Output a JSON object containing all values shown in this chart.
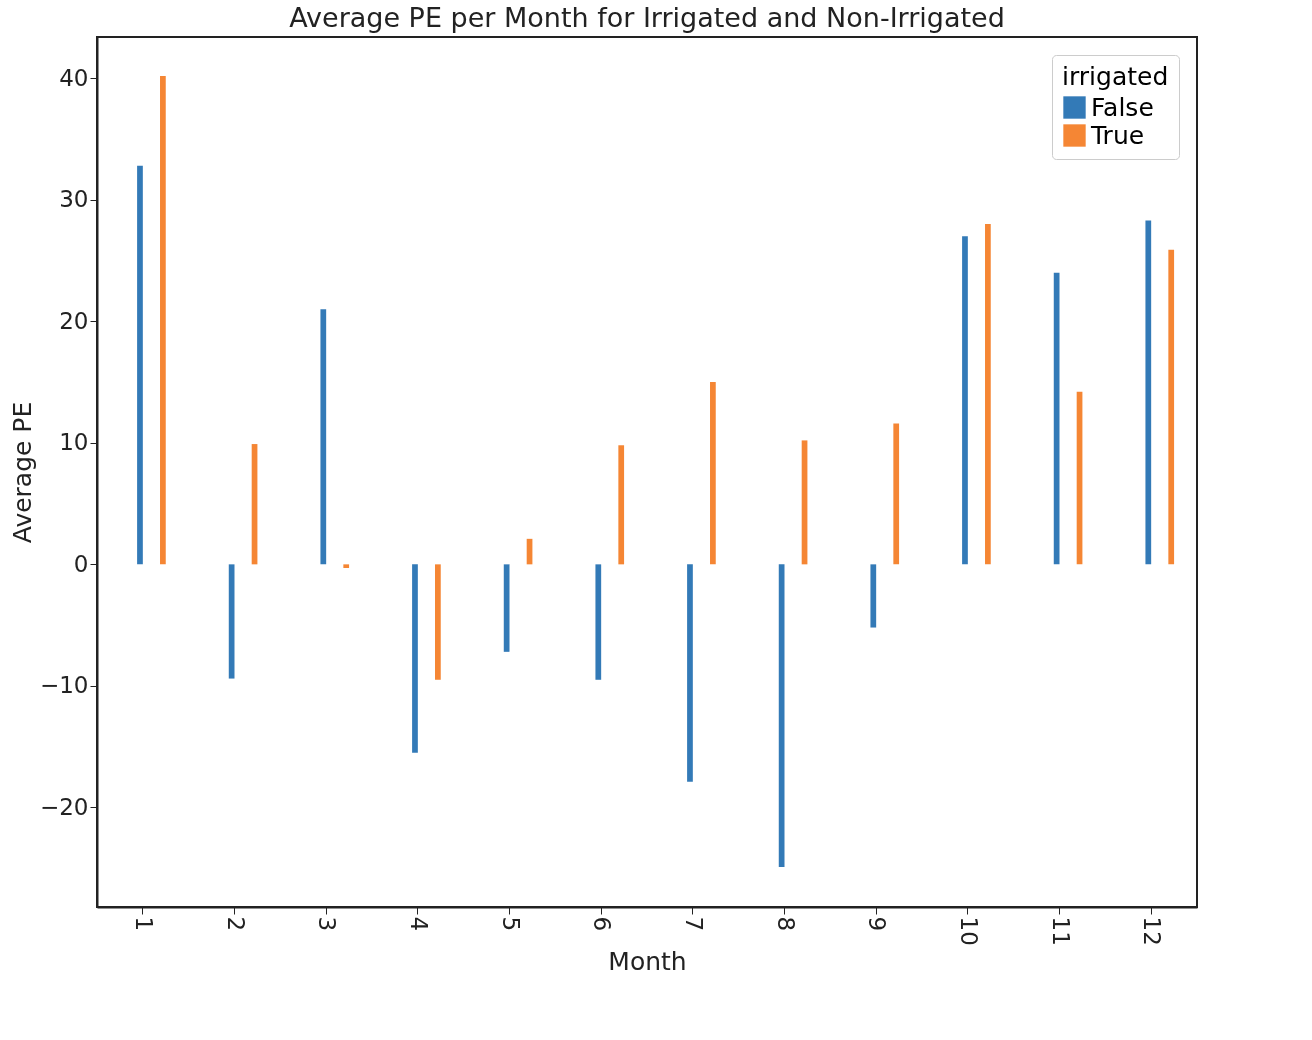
{
  "chart_data": {
    "type": "bar",
    "title": "Average PE per Month for Irrigated and Non-Irrigated",
    "xlabel": "Month",
    "ylabel": "Average PE",
    "legend_title": "irrigated",
    "categories": [
      "1",
      "2",
      "3",
      "4",
      "5",
      "6",
      "7",
      "8",
      "9",
      "10",
      "11",
      "12"
    ],
    "series": [
      {
        "name": "False",
        "color": "#337ab7",
        "values": [
          32.8,
          -9.4,
          21.0,
          -15.5,
          -7.2,
          -9.5,
          -17.9,
          -24.9,
          -5.2,
          27.0,
          24.0,
          28.3
        ]
      },
      {
        "name": "True",
        "color": "#f58634",
        "values": [
          40.2,
          9.9,
          -0.3,
          -9.5,
          2.1,
          9.8,
          15.0,
          10.2,
          11.6,
          28.0,
          14.2,
          25.9
        ]
      }
    ],
    "ylim": [
      -28.2,
      43.4
    ],
    "yticks": [
      {
        "value": -20,
        "label": "−20"
      },
      {
        "value": -10,
        "label": "−10"
      },
      0,
      10,
      20,
      30,
      40
    ],
    "grid": false,
    "legend": "top right"
  }
}
